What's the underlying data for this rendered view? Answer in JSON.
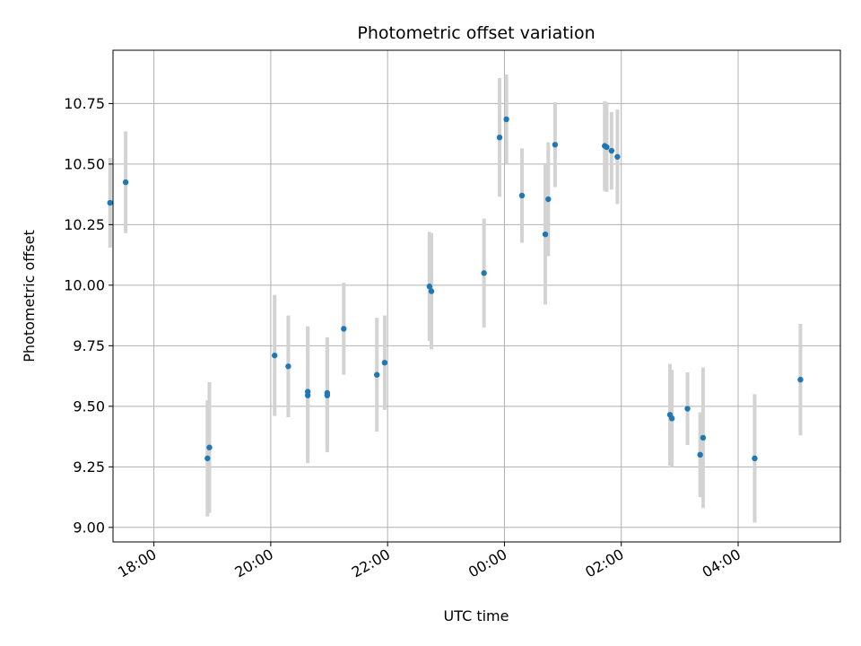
{
  "chart_data": {
    "type": "scatter",
    "title": "Photometric offset variation",
    "xlabel": "UTC time",
    "ylabel": "Photometric offset",
    "x_tick_labels": [
      "18:00",
      "20:00",
      "22:00",
      "00:00",
      "02:00",
      "04:00"
    ],
    "y_tick_labels": [
      "9.00",
      "9.25",
      "9.50",
      "9.75",
      "10.00",
      "10.25",
      "10.50",
      "10.75"
    ],
    "xlim": [
      "17:18",
      "05:45"
    ],
    "ylim": [
      8.94,
      10.97
    ],
    "grid": true,
    "marker_color": "#1f77b4",
    "errorbar_color": "#d3d3d3",
    "points": [
      {
        "x": "17:15",
        "y": 10.34,
        "err": 0.185
      },
      {
        "x": "17:31",
        "y": 10.425,
        "err": 0.21
      },
      {
        "x": "18:55",
        "y": 9.285,
        "err": 0.24
      },
      {
        "x": "18:57",
        "y": 9.33,
        "err": 0.27
      },
      {
        "x": "20:04",
        "y": 9.71,
        "err": 0.25
      },
      {
        "x": "20:18",
        "y": 9.665,
        "err": 0.21
      },
      {
        "x": "20:38",
        "y": 9.56,
        "err": 0.27
      },
      {
        "x": "20:38",
        "y": 9.545,
        "err": 0.28
      },
      {
        "x": "20:58",
        "y": 9.555,
        "err": 0.23
      },
      {
        "x": "20:58",
        "y": 9.545,
        "err": 0.235
      },
      {
        "x": "21:15",
        "y": 9.82,
        "err": 0.19
      },
      {
        "x": "21:49",
        "y": 9.63,
        "err": 0.235
      },
      {
        "x": "21:57",
        "y": 9.68,
        "err": 0.195
      },
      {
        "x": "22:43",
        "y": 9.995,
        "err": 0.225
      },
      {
        "x": "22:45",
        "y": 9.975,
        "err": 0.24
      },
      {
        "x": "23:39",
        "y": 10.05,
        "err": 0.225
      },
      {
        "x": "23:55",
        "y": 10.61,
        "err": 0.245
      },
      {
        "x": "00:02",
        "y": 10.685,
        "err": 0.185
      },
      {
        "x": "00:18",
        "y": 10.37,
        "err": 0.195
      },
      {
        "x": "00:42",
        "y": 10.21,
        "err": 0.29
      },
      {
        "x": "00:45",
        "y": 10.355,
        "err": 0.235
      },
      {
        "x": "00:52",
        "y": 10.58,
        "err": 0.175
      },
      {
        "x": "01:43",
        "y": 10.575,
        "err": 0.185
      },
      {
        "x": "01:45",
        "y": 10.57,
        "err": 0.185
      },
      {
        "x": "01:50",
        "y": 10.555,
        "err": 0.16
      },
      {
        "x": "01:56",
        "y": 10.53,
        "err": 0.195
      },
      {
        "x": "02:50",
        "y": 9.465,
        "err": 0.21
      },
      {
        "x": "02:52",
        "y": 9.45,
        "err": 0.2
      },
      {
        "x": "03:08",
        "y": 9.49,
        "err": 0.15
      },
      {
        "x": "03:21",
        "y": 9.3,
        "err": 0.175
      },
      {
        "x": "03:24",
        "y": 9.37,
        "err": 0.29
      },
      {
        "x": "04:17",
        "y": 9.285,
        "err": 0.265
      },
      {
        "x": "05:04",
        "y": 9.61,
        "err": 0.23
      }
    ]
  }
}
